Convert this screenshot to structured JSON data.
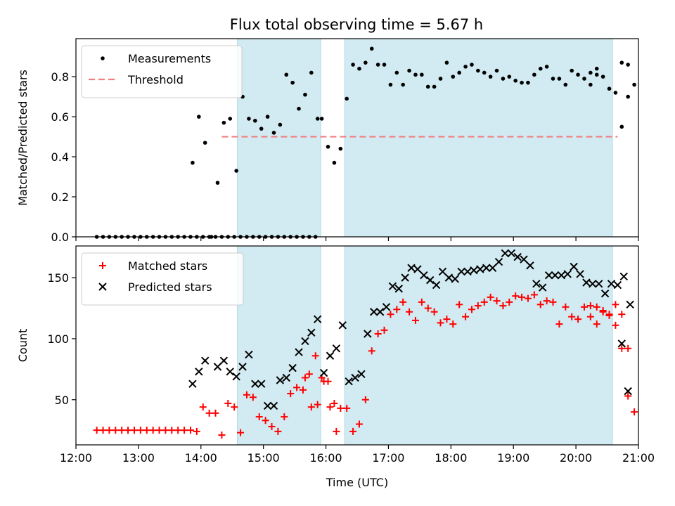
{
  "figure": {
    "title": "Flux total observing time = 5.67 h"
  },
  "chart_data": [
    {
      "type": "scatter",
      "title": "Flux total observing time = 5.67 h",
      "xlabel": "",
      "ylabel": "Matched/Predicted stars",
      "xlim": [
        "12:00",
        "21:00"
      ],
      "ylim": [
        0,
        0.99
      ],
      "xticks": [
        "12:00",
        "13:00",
        "14:00",
        "15:00",
        "16:00",
        "17:00",
        "18:00",
        "19:00",
        "20:00",
        "21:00"
      ],
      "yticks": [
        "0.0",
        "0.2",
        "0.4",
        "0.6",
        "0.8"
      ],
      "ytick_values": [
        0,
        0.2,
        0.4,
        0.6,
        0.8
      ],
      "grid": false,
      "legend_position": "upper-left",
      "shaded_spans": [
        [
          "14:35",
          "15:55"
        ],
        [
          "16:18",
          "20:35"
        ]
      ],
      "shade_color": "#add8e6",
      "threshold": {
        "name": "Threshold",
        "value": 0.5,
        "x_range": [
          "14:20",
          "20:40"
        ],
        "color": "#f08080"
      },
      "series": [
        {
          "name": "Measurements",
          "marker": "dot",
          "color": "#000000",
          "x": [
            "12:20",
            "12:26",
            "12:32",
            "12:38",
            "12:44",
            "12:50",
            "12:56",
            "13:02",
            "13:08",
            "13:14",
            "13:20",
            "13:26",
            "13:32",
            "13:38",
            "13:44",
            "13:50",
            "13:56",
            "14:02",
            "14:08",
            "14:14",
            "14:20",
            "14:26",
            "14:32",
            "14:38",
            "14:44",
            "14:50",
            "14:56",
            "15:02",
            "15:08",
            "15:14",
            "15:20",
            "15:26",
            "15:32",
            "15:38",
            "15:44",
            "15:50",
            "15:56",
            "16:02",
            "16:08",
            "16:14",
            "16:20",
            "16:26",
            "16:32",
            "16:38",
            "16:44",
            "16:50",
            "16:56",
            "17:02",
            "17:08",
            "17:14",
            "17:20",
            "17:26",
            "17:32",
            "17:38",
            "17:44",
            "17:50",
            "17:56",
            "18:02",
            "18:08",
            "18:14",
            "18:20",
            "18:26",
            "18:32",
            "18:38",
            "18:44",
            "18:50",
            "18:56",
            "19:02",
            "19:08",
            "19:14",
            "19:20",
            "19:26",
            "19:32",
            "19:38",
            "19:44",
            "19:50",
            "19:56",
            "20:02",
            "20:08",
            "20:14",
            "20:20",
            "20:26",
            "20:32",
            "20:38"
          ],
          "y": [
            0,
            0,
            0,
            0,
            0,
            0,
            0,
            0,
            0,
            0,
            0,
            0,
            0,
            0,
            0,
            0,
            0,
            0,
            0,
            0,
            0,
            0,
            0,
            0,
            0,
            0,
            0,
            0,
            0,
            0,
            0,
            0,
            0,
            0,
            0,
            0,
            0.59,
            0.45,
            0.37,
            0.44,
            0.69,
            0.86,
            0.84,
            0.87,
            0.94,
            0.86,
            0.86,
            0.76,
            0.82,
            0.76,
            0.83,
            0.81,
            0.81,
            0.75,
            0.75,
            0.79,
            0.87,
            0.8,
            0.82,
            0.85,
            0.86,
            0.83,
            0.82,
            0.8,
            0.83,
            0.79,
            0.8,
            0.78,
            0.77,
            0.77,
            0.81,
            0.84,
            0.85,
            0.79,
            0.79,
            0.76,
            0.83,
            0.81,
            0.79,
            0.82,
            0.84,
            0.8,
            0.74,
            0.72
          ],
          "x_extra": [
            "13:52",
            "13:58",
            "14:04",
            "14:10",
            "14:16",
            "14:22",
            "14:28",
            "14:34",
            "14:40",
            "14:46",
            "14:52",
            "14:58",
            "15:04",
            "15:10",
            "15:16",
            "15:22",
            "15:28",
            "15:34",
            "15:40",
            "15:46",
            "15:52",
            "20:44",
            "20:50",
            "20:56",
            "20:14",
            "20:20",
            "20:44",
            "20:50"
          ],
          "y_extra": [
            0.37,
            0.6,
            0.47,
            0,
            0.27,
            0.57,
            0.59,
            0.33,
            0.7,
            0.59,
            0.58,
            0.54,
            0.6,
            0.52,
            0.56,
            0.81,
            0.77,
            0.64,
            0.71,
            0.82,
            0.59,
            0.55,
            0.7,
            0.76,
            0.76,
            0.81,
            0.87,
            0.86
          ]
        }
      ]
    },
    {
      "type": "scatter",
      "title": "",
      "xlabel": "Time (UTC)",
      "ylabel": "Count",
      "xlim": [
        "12:00",
        "21:00"
      ],
      "ylim": [
        13,
        176
      ],
      "xticks": [
        "12:00",
        "13:00",
        "14:00",
        "15:00",
        "16:00",
        "17:00",
        "18:00",
        "19:00",
        "20:00",
        "21:00"
      ],
      "yticks": [
        "50",
        "100",
        "150"
      ],
      "ytick_values": [
        50,
        100,
        150
      ],
      "grid": false,
      "legend_position": "upper-left",
      "shaded_spans": [
        [
          "14:35",
          "15:55"
        ],
        [
          "16:18",
          "20:35"
        ]
      ],
      "shade_color": "#add8e6",
      "series": [
        {
          "name": "Matched stars",
          "marker": "plus",
          "color": "#ff0000",
          "x": [
            "12:20",
            "12:26",
            "12:32",
            "12:38",
            "12:44",
            "12:50",
            "12:56",
            "13:02",
            "13:08",
            "13:14",
            "13:20",
            "13:26",
            "13:32",
            "13:38",
            "13:44",
            "13:50",
            "13:56",
            "14:02",
            "14:08",
            "14:14",
            "14:20",
            "14:26",
            "14:32",
            "14:38",
            "14:44",
            "14:50",
            "14:56",
            "15:02",
            "15:08",
            "15:14",
            "15:20",
            "15:26",
            "15:32",
            "15:38",
            "15:44",
            "15:50",
            "15:56",
            "16:02",
            "16:08",
            "16:14",
            "16:20",
            "16:26",
            "16:32",
            "16:38",
            "16:44",
            "16:50",
            "16:56",
            "17:02",
            "17:08",
            "17:14",
            "17:20",
            "17:26",
            "17:32",
            "17:38",
            "17:44",
            "17:50",
            "17:56",
            "18:02",
            "18:08",
            "18:14",
            "18:20",
            "18:26",
            "18:32",
            "18:38",
            "18:44",
            "18:50",
            "18:56",
            "19:02",
            "19:08",
            "19:14",
            "19:20",
            "19:26",
            "19:32",
            "19:38",
            "19:44",
            "19:50",
            "19:56",
            "20:02",
            "20:08",
            "20:14",
            "20:20",
            "20:26",
            "20:32",
            "20:38",
            "20:44",
            "20:50"
          ],
          "y": [
            25,
            25,
            25,
            25,
            25,
            25,
            25,
            25,
            25,
            25,
            25,
            25,
            25,
            25,
            25,
            25,
            24,
            44,
            39,
            39,
            21,
            47,
            44,
            23,
            54,
            52,
            36,
            33,
            28,
            24,
            36,
            55,
            60,
            58,
            71,
            86,
            68,
            65,
            47,
            43,
            43,
            24,
            30,
            50,
            90,
            104,
            107,
            120,
            124,
            130,
            122,
            115,
            130,
            125,
            122,
            113,
            116,
            112,
            128,
            118,
            124,
            127,
            130,
            134,
            131,
            127,
            130,
            135,
            134,
            133,
            136,
            128,
            131,
            130,
            112,
            126,
            118,
            116,
            126,
            118,
            126,
            122,
            119,
            128,
            120,
            92
          ],
          "x_extra": [
            "15:40",
            "15:46",
            "15:52",
            "15:58",
            "16:04",
            "16:10",
            "20:14",
            "20:20",
            "20:26",
            "20:32",
            "20:38",
            "20:44",
            "20:50",
            "20:56"
          ],
          "y_extra": [
            68,
            44,
            46,
            65,
            44,
            24,
            127,
            112,
            123,
            120,
            111,
            92,
            53,
            40
          ]
        },
        {
          "name": "Predicted stars",
          "marker": "x",
          "color": "#000000",
          "x": [
            "13:52",
            "13:58",
            "14:04",
            "14:16",
            "14:22",
            "14:28",
            "14:34",
            "14:40",
            "14:46",
            "14:52",
            "14:58",
            "15:04",
            "15:10",
            "15:16",
            "15:22",
            "15:28",
            "15:34",
            "15:40",
            "15:46",
            "15:52",
            "15:58",
            "16:04",
            "16:10",
            "16:16",
            "16:22",
            "16:28",
            "16:34",
            "16:40",
            "16:46",
            "16:52",
            "16:58",
            "17:04",
            "17:10",
            "17:16",
            "17:22",
            "17:28",
            "17:34",
            "17:40",
            "17:46",
            "17:52",
            "17:58",
            "18:04",
            "18:10",
            "18:16",
            "18:22",
            "18:28",
            "18:34",
            "18:40",
            "18:46",
            "18:52",
            "18:58",
            "19:04",
            "19:10",
            "19:16",
            "19:22",
            "19:28",
            "19:34",
            "19:40",
            "19:46",
            "19:52",
            "19:58",
            "20:04",
            "20:10",
            "20:16",
            "20:22",
            "20:28",
            "20:34",
            "20:40",
            "20:46",
            "20:52"
          ],
          "y": [
            63,
            73,
            82,
            77,
            82,
            73,
            69,
            77,
            87,
            63,
            63,
            45,
            45,
            66,
            68,
            76,
            89,
            98,
            105,
            116,
            72,
            86,
            92,
            111,
            65,
            68,
            71,
            104,
            122,
            122,
            126,
            143,
            141,
            150,
            158,
            157,
            152,
            148,
            144,
            155,
            150,
            149,
            155,
            155,
            156,
            157,
            158,
            158,
            163,
            170,
            170,
            167,
            165,
            160,
            145,
            142,
            152,
            152,
            152,
            153,
            159,
            153,
            146,
            145,
            145,
            137,
            145,
            144,
            151,
            128
          ],
          "x_extra": [
            "20:44",
            "20:50"
          ],
          "y_extra": [
            96,
            57
          ]
        }
      ]
    }
  ]
}
